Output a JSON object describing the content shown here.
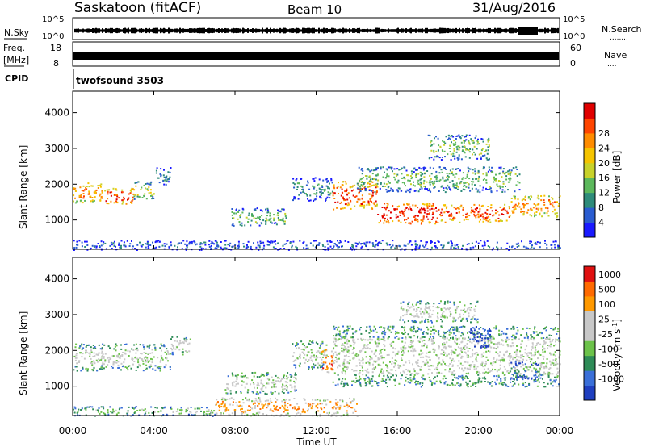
{
  "header": {
    "station": "Saskatoon (fitACF)",
    "beam": "Beam 10",
    "date": "31/Aug/2016"
  },
  "summary": {
    "nsky_label": "N.Sky",
    "nsky_ticks": [
      "10^5",
      "10^0"
    ],
    "nsearch_label": "N.Search",
    "nsearch_dots": "........",
    "freq_label": "Freq.",
    "freq_unit": "[MHz]",
    "freq_ticks": [
      "18",
      "8"
    ],
    "nave_ticks": [
      "60",
      "0"
    ],
    "nave_label": "Nave",
    "nave_dots": "....",
    "cpid_label": "CPID",
    "cpid_value": "twofsound 3503"
  },
  "chart_data": [
    {
      "type": "heatmap",
      "name": "power",
      "ylabel": "Slant Range [km]",
      "yticks": [
        "1000",
        "2000",
        "3000",
        "4000"
      ],
      "ylim": [
        180,
        4600
      ],
      "xlim": [
        0,
        24
      ],
      "colorbar": {
        "label": "Power [dB]",
        "ticks": [
          "4",
          "8",
          "12",
          "16",
          "20",
          "24",
          "28"
        ],
        "colors": [
          "#1a1aff",
          "#2a5cd0",
          "#2e8b7a",
          "#5cb85c",
          "#c8d22a",
          "#f5c400",
          "#ff8c00",
          "#ff4500",
          "#e00000"
        ]
      },
      "bands": [
        {
          "t0": 0.0,
          "t1": 1.5,
          "r0": 1500,
          "r1": 2050,
          "level": 6
        },
        {
          "t0": 1.5,
          "t1": 3.0,
          "r0": 1450,
          "r1": 1900,
          "level": 7
        },
        {
          "t0": 3.0,
          "t1": 4.0,
          "r0": 1600,
          "r1": 2100,
          "level": 4
        },
        {
          "t0": 4.0,
          "t1": 4.8,
          "r0": 2000,
          "r1": 2500,
          "level": 2
        },
        {
          "t0": 7.8,
          "t1": 10.5,
          "r0": 850,
          "r1": 1350,
          "level": 3
        },
        {
          "t0": 10.8,
          "t1": 12.8,
          "r0": 1550,
          "r1": 2200,
          "level": 2
        },
        {
          "t0": 12.8,
          "t1": 15.0,
          "r0": 1300,
          "r1": 2100,
          "level": 7
        },
        {
          "t0": 15.0,
          "t1": 18.0,
          "r0": 900,
          "r1": 1500,
          "level": 8
        },
        {
          "t0": 18.0,
          "t1": 21.5,
          "r0": 950,
          "r1": 1450,
          "level": 7
        },
        {
          "t0": 21.5,
          "t1": 24.0,
          "r0": 1100,
          "r1": 1700,
          "level": 6
        },
        {
          "t0": 14.0,
          "t1": 22.0,
          "r0": 1800,
          "r1": 2500,
          "level": 3
        },
        {
          "t0": 17.5,
          "t1": 20.5,
          "r0": 2700,
          "r1": 3400,
          "level": 3
        },
        {
          "t0": 0.0,
          "t1": 24.0,
          "r0": 180,
          "r1": 450,
          "level": 1
        }
      ]
    },
    {
      "type": "heatmap",
      "name": "velocity",
      "ylabel": "Slant Range [km]",
      "yticks": [
        "1000",
        "2000",
        "3000",
        "4000"
      ],
      "ylim": [
        180,
        4600
      ],
      "xlim": [
        0,
        24
      ],
      "colorbar": {
        "label": "Velocity [m s",
        "label_sup": "-1",
        "label_end": "]",
        "ticks": [
          "1000",
          "500",
          "100",
          "25",
          "-25",
          "-100",
          "-500",
          "-1000"
        ],
        "colors": [
          "#1f3fbf",
          "#3a6fd8",
          "#2e8b57",
          "#6cc24a",
          "#c8c8c8",
          "#c8c8c8",
          "#ff9900",
          "#ff6a00",
          "#e01010"
        ]
      },
      "bands": [
        {
          "t0": 0.0,
          "t1": 4.8,
          "r0": 1450,
          "r1": 2200,
          "level": 4
        },
        {
          "t0": 4.8,
          "t1": 5.8,
          "r0": 1900,
          "r1": 2400,
          "level": 4
        },
        {
          "t0": 7.5,
          "t1": 11.0,
          "r0": 800,
          "r1": 1400,
          "level": 4
        },
        {
          "t0": 10.8,
          "t1": 12.5,
          "r0": 1500,
          "r1": 2300,
          "level": 4
        },
        {
          "t0": 12.8,
          "t1": 24.0,
          "r0": 1000,
          "r1": 2700,
          "level": 4
        },
        {
          "t0": 16.0,
          "t1": 20.0,
          "r0": 2800,
          "r1": 3400,
          "level": 4
        },
        {
          "t0": 19.5,
          "t1": 20.6,
          "r0": 2100,
          "r1": 2700,
          "level": 0
        },
        {
          "t0": 21.5,
          "t1": 23.0,
          "r0": 1200,
          "r1": 1700,
          "level": 2
        },
        {
          "t0": 12.2,
          "t1": 12.8,
          "r0": 1350,
          "r1": 2050,
          "level": 7
        },
        {
          "t0": 7.0,
          "t1": 14.0,
          "r0": 180,
          "r1": 700,
          "level": 6
        },
        {
          "t0": 0.0,
          "t1": 7.0,
          "r0": 180,
          "r1": 450,
          "level": 3
        }
      ]
    }
  ],
  "xaxis": {
    "label": "Time UT",
    "ticks": [
      "00:00",
      "04:00",
      "08:00",
      "12:00",
      "16:00",
      "20:00",
      "00:00"
    ]
  }
}
